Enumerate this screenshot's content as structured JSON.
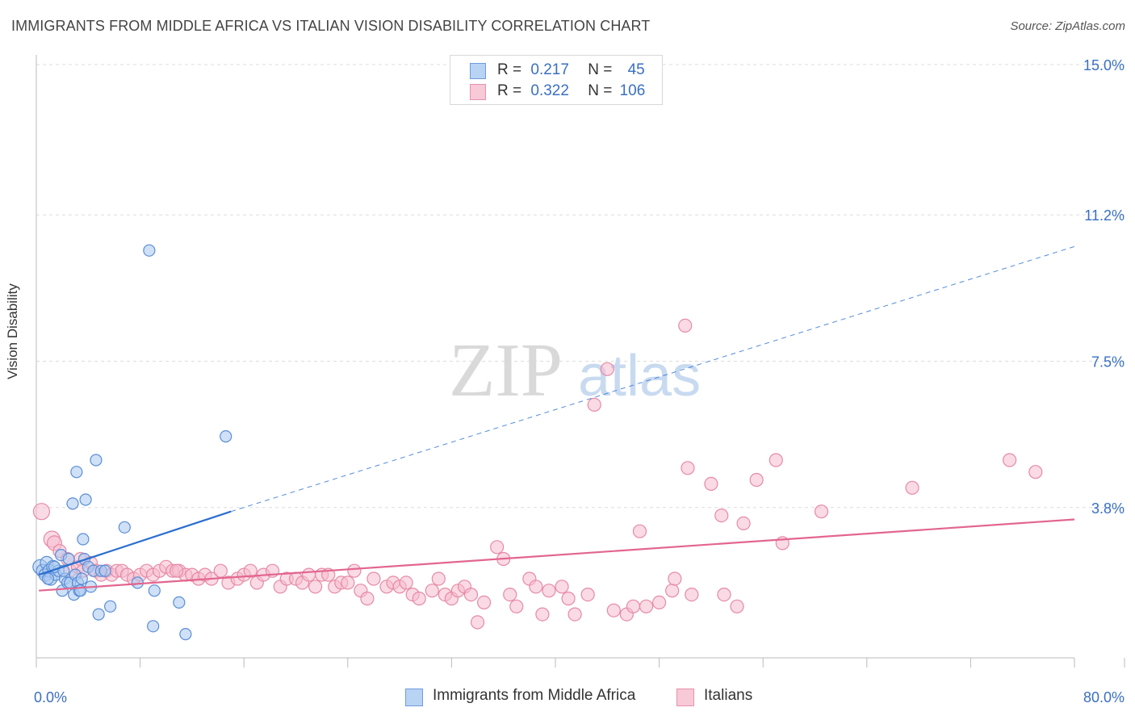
{
  "title": "IMMIGRANTS FROM MIDDLE AFRICA VS ITALIAN VISION DISABILITY CORRELATION CHART",
  "source": "Source: ZipAtlas.com",
  "watermark": {
    "zip": "ZIP",
    "atlas": "atlas"
  },
  "legend_top": [
    {
      "r_label": "R =",
      "r_value": "0.217",
      "n_label": "N =",
      "n_value": "45"
    },
    {
      "r_label": "R =",
      "r_value": "0.322",
      "n_label": "N =",
      "n_value": "106"
    }
  ],
  "legend_bottom": [
    {
      "label": "Immigrants from Middle Africa"
    },
    {
      "label": "Italians"
    }
  ],
  "colors": {
    "blue_fill": "#a9c8f0",
    "blue_stroke": "#5a8ed6",
    "blue_line": "#2a6fcf",
    "pink_fill": "#f6bccd",
    "pink_stroke": "#e68aa7",
    "pink_line": "#e2668f",
    "axis_label": "#3a6fc2",
    "grid": "#dddddd"
  },
  "chart_data": {
    "type": "scatter",
    "title": "IMMIGRANTS FROM MIDDLE AFRICA VS ITALIAN VISION DISABILITY CORRELATION CHART",
    "xlabel": "",
    "ylabel": "Vision Disability",
    "xlim": [
      0,
      80
    ],
    "ylim": [
      0,
      15.0
    ],
    "x_tick_labels": [
      "0.0%",
      "80.0%"
    ],
    "y_ticks": [
      3.8,
      7.5,
      11.2,
      15.0
    ],
    "y_tick_labels": [
      "3.8%",
      "7.5%",
      "11.2%",
      "15.0%"
    ],
    "grid": true,
    "series": [
      {
        "name": "Immigrants from Middle Africa",
        "r": 0.217,
        "n": 45,
        "trend": {
          "x0": 0.2,
          "y0": 2.1,
          "x1": 15.0,
          "y1": 3.7,
          "dash_to_x": 80,
          "dash_to_y": 10.4
        },
        "points": [
          [
            0.3,
            2.3,
            9
          ],
          [
            0.5,
            2.2,
            8
          ],
          [
            0.7,
            2.1,
            8
          ],
          [
            0.8,
            2.4,
            8
          ],
          [
            1.0,
            2.2,
            8
          ],
          [
            1.1,
            2.0,
            8
          ],
          [
            1.3,
            2.3,
            8
          ],
          [
            1.5,
            2.1,
            7
          ],
          [
            1.7,
            2.2,
            7
          ],
          [
            1.9,
            2.6,
            7
          ],
          [
            2.0,
            1.7,
            7
          ],
          [
            2.2,
            2.0,
            7
          ],
          [
            2.4,
            1.9,
            7
          ],
          [
            2.5,
            2.5,
            7
          ],
          [
            2.6,
            1.9,
            7
          ],
          [
            2.8,
            3.9,
            7
          ],
          [
            2.9,
            1.6,
            7
          ],
          [
            3.0,
            2.1,
            7
          ],
          [
            3.1,
            4.7,
            7
          ],
          [
            3.2,
            1.9,
            7
          ],
          [
            3.3,
            1.7,
            7
          ],
          [
            3.4,
            1.7,
            7
          ],
          [
            3.5,
            2.0,
            7
          ],
          [
            3.6,
            3.0,
            7
          ],
          [
            3.7,
            2.5,
            7
          ],
          [
            3.8,
            4.0,
            7
          ],
          [
            4.0,
            2.3,
            7
          ],
          [
            4.2,
            1.8,
            7
          ],
          [
            4.4,
            2.2,
            7
          ],
          [
            4.6,
            5.0,
            7
          ],
          [
            4.8,
            1.1,
            7
          ],
          [
            5.0,
            2.2,
            7
          ],
          [
            5.3,
            2.2,
            7
          ],
          [
            5.7,
            1.3,
            7
          ],
          [
            6.8,
            3.3,
            7
          ],
          [
            7.8,
            1.9,
            7
          ],
          [
            8.7,
            10.3,
            7
          ],
          [
            9.0,
            0.8,
            7
          ],
          [
            9.1,
            1.7,
            7
          ],
          [
            11.0,
            1.4,
            7
          ],
          [
            11.5,
            0.6,
            7
          ],
          [
            14.6,
            5.6,
            7
          ],
          [
            1.4,
            2.3,
            7
          ],
          [
            2.1,
            2.2,
            7
          ],
          [
            0.9,
            2.0,
            7
          ]
        ]
      },
      {
        "name": "Italians",
        "r": 0.322,
        "n": 106,
        "trend": {
          "x0": 0.2,
          "y0": 1.7,
          "x1": 80.0,
          "y1": 3.5
        },
        "points": [
          [
            0.4,
            3.7,
            10
          ],
          [
            1.2,
            3.0,
            10
          ],
          [
            1.4,
            2.9,
            9
          ],
          [
            1.8,
            2.7,
            8
          ],
          [
            2.4,
            2.5,
            8
          ],
          [
            2.6,
            2.2,
            8
          ],
          [
            3.2,
            2.3,
            8
          ],
          [
            3.4,
            2.5,
            8
          ],
          [
            3.6,
            2.2,
            8
          ],
          [
            4.2,
            2.4,
            8
          ],
          [
            4.6,
            2.2,
            8
          ],
          [
            5.0,
            2.1,
            8
          ],
          [
            5.4,
            2.2,
            8
          ],
          [
            5.8,
            2.1,
            8
          ],
          [
            6.2,
            2.2,
            8
          ],
          [
            6.6,
            2.2,
            8
          ],
          [
            7.0,
            2.1,
            8
          ],
          [
            7.5,
            2.0,
            8
          ],
          [
            8.0,
            2.1,
            8
          ],
          [
            8.5,
            2.2,
            8
          ],
          [
            9.0,
            2.1,
            8
          ],
          [
            9.5,
            2.2,
            8
          ],
          [
            10.0,
            2.3,
            8
          ],
          [
            10.5,
            2.2,
            8
          ],
          [
            11.0,
            2.2,
            8
          ],
          [
            11.5,
            2.1,
            8
          ],
          [
            12.0,
            2.1,
            8
          ],
          [
            12.5,
            2.0,
            8
          ],
          [
            13.0,
            2.1,
            8
          ],
          [
            13.5,
            2.0,
            8
          ],
          [
            14.2,
            2.2,
            8
          ],
          [
            14.8,
            1.9,
            8
          ],
          [
            15.5,
            2.0,
            8
          ],
          [
            16.0,
            2.1,
            8
          ],
          [
            16.5,
            2.2,
            8
          ],
          [
            17.0,
            1.9,
            8
          ],
          [
            17.5,
            2.1,
            8
          ],
          [
            18.2,
            2.2,
            8
          ],
          [
            18.8,
            1.8,
            8
          ],
          [
            19.3,
            2.0,
            8
          ],
          [
            20.0,
            2.0,
            8
          ],
          [
            20.5,
            1.9,
            8
          ],
          [
            21.0,
            2.1,
            8
          ],
          [
            21.5,
            1.8,
            8
          ],
          [
            22.0,
            2.1,
            8
          ],
          [
            22.5,
            2.1,
            8
          ],
          [
            23.0,
            1.8,
            8
          ],
          [
            23.5,
            1.9,
            8
          ],
          [
            24.0,
            1.9,
            8
          ],
          [
            24.5,
            2.2,
            8
          ],
          [
            25.0,
            1.7,
            8
          ],
          [
            25.5,
            1.5,
            8
          ],
          [
            26.0,
            2.0,
            8
          ],
          [
            27.0,
            1.8,
            8
          ],
          [
            27.5,
            1.9,
            8
          ],
          [
            28.0,
            1.8,
            8
          ],
          [
            28.5,
            1.9,
            8
          ],
          [
            29.0,
            1.6,
            8
          ],
          [
            29.5,
            1.5,
            8
          ],
          [
            30.5,
            1.7,
            8
          ],
          [
            31.0,
            2.0,
            8
          ],
          [
            31.5,
            1.6,
            8
          ],
          [
            32.0,
            1.5,
            8
          ],
          [
            32.5,
            1.7,
            8
          ],
          [
            33.0,
            1.8,
            8
          ],
          [
            33.5,
            1.6,
            8
          ],
          [
            34.0,
            0.9,
            8
          ],
          [
            34.5,
            1.4,
            8
          ],
          [
            35.5,
            2.8,
            8
          ],
          [
            36.0,
            2.5,
            8
          ],
          [
            36.5,
            1.6,
            8
          ],
          [
            37.0,
            1.3,
            8
          ],
          [
            38.0,
            2.0,
            8
          ],
          [
            38.5,
            1.8,
            8
          ],
          [
            39.0,
            1.1,
            8
          ],
          [
            39.5,
            1.7,
            8
          ],
          [
            40.5,
            1.8,
            8
          ],
          [
            41.0,
            1.5,
            8
          ],
          [
            41.5,
            1.1,
            8
          ],
          [
            42.5,
            1.6,
            8
          ],
          [
            43.0,
            6.4,
            8
          ],
          [
            44.0,
            7.3,
            8
          ],
          [
            44.5,
            1.2,
            8
          ],
          [
            45.5,
            1.1,
            8
          ],
          [
            46.0,
            1.3,
            8
          ],
          [
            46.5,
            3.2,
            8
          ],
          [
            47.0,
            1.3,
            8
          ],
          [
            48.0,
            1.4,
            8
          ],
          [
            49.0,
            1.7,
            8
          ],
          [
            49.2,
            2.0,
            8
          ],
          [
            50.0,
            8.4,
            8
          ],
          [
            50.2,
            4.8,
            8
          ],
          [
            50.5,
            1.6,
            8
          ],
          [
            52.0,
            4.4,
            8
          ],
          [
            52.8,
            3.6,
            8
          ],
          [
            53.0,
            1.6,
            8
          ],
          [
            54.0,
            1.3,
            8
          ],
          [
            54.5,
            3.4,
            8
          ],
          [
            55.5,
            4.5,
            8
          ],
          [
            57.5,
            2.9,
            8
          ],
          [
            57.0,
            5.0,
            8
          ],
          [
            60.5,
            3.7,
            8
          ],
          [
            67.5,
            4.3,
            8
          ],
          [
            75.0,
            5.0,
            8
          ],
          [
            77.0,
            4.7,
            8
          ],
          [
            10.8,
            2.2,
            8
          ]
        ]
      }
    ]
  }
}
